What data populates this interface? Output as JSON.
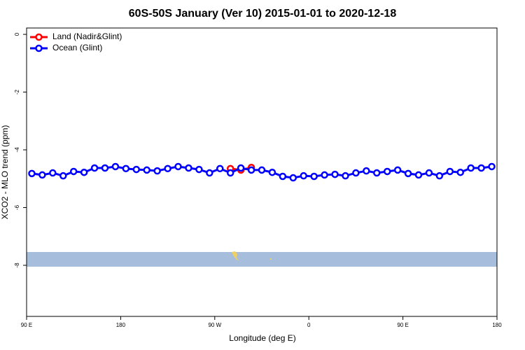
{
  "chart_data": {
    "type": "line",
    "title": "60S-50S January (Ver 10)   2015-01-01 to 2020-12-18",
    "x_label": "Longitude (deg E)",
    "y_label": "XCO2 - MLO trend (ppm)",
    "legend": "top-left",
    "xlim": [
      90,
      540
    ],
    "xticks": [
      {
        "value": 90,
        "label": "90 E"
      },
      {
        "value": 180,
        "label": "180"
      },
      {
        "value": 270,
        "label": "90 W"
      },
      {
        "value": 360,
        "label": "0"
      },
      {
        "value": 450,
        "label": "90 E"
      },
      {
        "value": 540,
        "label": "180"
      }
    ],
    "ylim": [
      -9.77,
      0.22
    ],
    "yticks": [
      0,
      -2,
      -4,
      -6,
      -8
    ],
    "series": [
      {
        "name": "Land (Nadir&Glint)",
        "color": "#ff0000",
        "x": [
          285,
          295,
          305
        ],
        "values": [
          -4.65,
          -4.7,
          -4.61
        ]
      },
      {
        "name": "Ocean (Glint)",
        "color": "#0000ff",
        "x": [
          95,
          105,
          115,
          125,
          135,
          145,
          155,
          165,
          175,
          185,
          195,
          205,
          215,
          225,
          235,
          245,
          255,
          265,
          275,
          285,
          295,
          305,
          315,
          325,
          335,
          345,
          355,
          365,
          375,
          385,
          395,
          405,
          415,
          425,
          435,
          445,
          455,
          465,
          475,
          485,
          495,
          505,
          515,
          525,
          535
        ],
        "values": [
          -4.82,
          -4.87,
          -4.8,
          -4.9,
          -4.75,
          -4.78,
          -4.63,
          -4.63,
          -4.58,
          -4.65,
          -4.68,
          -4.7,
          -4.73,
          -4.65,
          -4.58,
          -4.63,
          -4.68,
          -4.8,
          -4.65,
          -4.8,
          -4.63,
          -4.7,
          -4.7,
          -4.78,
          -4.92,
          -4.97,
          -4.9,
          -4.92,
          -4.87,
          -4.85,
          -4.9,
          -4.8,
          -4.73,
          -4.8,
          -4.75,
          -4.7,
          -4.82,
          -4.87,
          -4.8,
          -4.9,
          -4.75,
          -4.78,
          -4.63,
          -4.63,
          -4.58
        ]
      }
    ]
  }
}
